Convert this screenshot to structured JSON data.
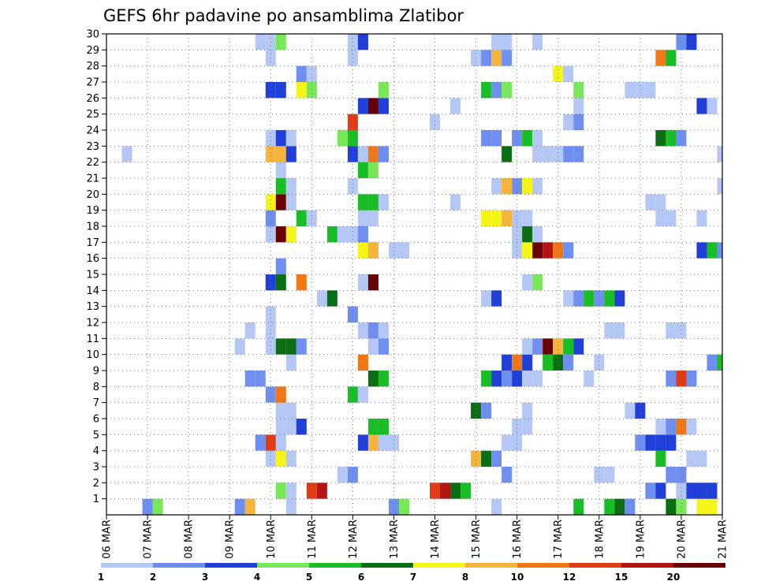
{
  "chart_data": {
    "type": "heatmap",
    "title": "GEFS 6hr padavine po ansamblima Zlatibor",
    "xlabel": "",
    "ylabel": "",
    "grid": true,
    "legend_position": "bottom",
    "x_tick_labels": [
      "06 MAR",
      "07 MAR",
      "08 MAR",
      "09 MAR",
      "10 MAR",
      "11 MAR",
      "12 MAR",
      "13 MAR",
      "14 MAR",
      "15 MAR",
      "16 MAR",
      "17 MAR",
      "18 MAR",
      "19 MAR",
      "20 MAR",
      "21 MAR"
    ],
    "x_unit": "6-hour step from 06 MAR 00z (60 steps, 06 MAR to 21 MAR)",
    "y_tick_labels": [
      "1",
      "2",
      "3",
      "4",
      "5",
      "6",
      "7",
      "8",
      "9",
      "10",
      "11",
      "12",
      "13",
      "14",
      "15",
      "16",
      "17",
      "18",
      "19",
      "20",
      "21",
      "22",
      "23",
      "24",
      "25",
      "26",
      "27",
      "28",
      "29",
      "30"
    ],
    "y_range": [
      0,
      30
    ],
    "color_scale": {
      "labels": [
        "1",
        "2",
        "3",
        "4",
        "5",
        "6",
        "7",
        "8",
        "10",
        "12",
        "15",
        "20"
      ],
      "colors": [
        "#b4c7f5",
        "#6e8ef0",
        "#1f3fd8",
        "#78e85a",
        "#19bd26",
        "#0b6e14",
        "#f5f51a",
        "#f5b43c",
        "#f07814",
        "#e03c14",
        "#b41414",
        "#6b0000"
      ]
    },
    "cells": [
      [
        0,
        4,
        1
      ],
      [
        0,
        5,
        3
      ],
      [
        0,
        13,
        1
      ],
      [
        0,
        14,
        7
      ],
      [
        0,
        18,
        0
      ],
      [
        0,
        28,
        1
      ],
      [
        0,
        29,
        3
      ],
      [
        0,
        38,
        0
      ],
      [
        0,
        46,
        4
      ],
      [
        0,
        49,
        4
      ],
      [
        0,
        50,
        5
      ],
      [
        0,
        51,
        1
      ],
      [
        0,
        55,
        5
      ],
      [
        0,
        56,
        3
      ],
      [
        0,
        58,
        6
      ],
      [
        0,
        59,
        6
      ],
      [
        1,
        17,
        3
      ],
      [
        1,
        18,
        0
      ],
      [
        1,
        20,
        9
      ],
      [
        1,
        21,
        10
      ],
      [
        1,
        32,
        9
      ],
      [
        1,
        33,
        10
      ],
      [
        1,
        34,
        5
      ],
      [
        1,
        35,
        4
      ],
      [
        1,
        53,
        1
      ],
      [
        1,
        54,
        2
      ],
      [
        1,
        56,
        0
      ],
      [
        1,
        57,
        2
      ],
      [
        1,
        58,
        2
      ],
      [
        1,
        59,
        2
      ],
      [
        2,
        23,
        0
      ],
      [
        2,
        24,
        1
      ],
      [
        2,
        39,
        1
      ],
      [
        2,
        48,
        0
      ],
      [
        2,
        49,
        0
      ],
      [
        2,
        55,
        1
      ],
      [
        2,
        56,
        1
      ],
      [
        3,
        16,
        0
      ],
      [
        3,
        17,
        6
      ],
      [
        3,
        18,
        0
      ],
      [
        3,
        36,
        7
      ],
      [
        3,
        37,
        5
      ],
      [
        3,
        38,
        1
      ],
      [
        3,
        54,
        4
      ],
      [
        3,
        57,
        0
      ],
      [
        3,
        58,
        0
      ],
      [
        4,
        15,
        1
      ],
      [
        4,
        16,
        9
      ],
      [
        4,
        17,
        0
      ],
      [
        4,
        25,
        2
      ],
      [
        4,
        26,
        7
      ],
      [
        4,
        27,
        0
      ],
      [
        4,
        28,
        0
      ],
      [
        4,
        39,
        0
      ],
      [
        4,
        40,
        0
      ],
      [
        4,
        52,
        1
      ],
      [
        4,
        53,
        2
      ],
      [
        4,
        54,
        2
      ],
      [
        4,
        55,
        2
      ],
      [
        5,
        17,
        0
      ],
      [
        5,
        18,
        0
      ],
      [
        5,
        19,
        2
      ],
      [
        5,
        26,
        4
      ],
      [
        5,
        27,
        4
      ],
      [
        5,
        40,
        0
      ],
      [
        5,
        41,
        0
      ],
      [
        5,
        54,
        0
      ],
      [
        5,
        55,
        1
      ],
      [
        5,
        56,
        8
      ],
      [
        5,
        57,
        0
      ],
      [
        6,
        17,
        0
      ],
      [
        6,
        18,
        0
      ],
      [
        6,
        36,
        5
      ],
      [
        6,
        37,
        1
      ],
      [
        6,
        41,
        0
      ],
      [
        6,
        51,
        0
      ],
      [
        6,
        52,
        2
      ],
      [
        7,
        16,
        1
      ],
      [
        7,
        17,
        8
      ],
      [
        7,
        24,
        4
      ],
      [
        7,
        25,
        0
      ],
      [
        8,
        14,
        1
      ],
      [
        8,
        15,
        1
      ],
      [
        8,
        26,
        5
      ],
      [
        8,
        27,
        4
      ],
      [
        8,
        37,
        4
      ],
      [
        8,
        38,
        2
      ],
      [
        8,
        39,
        1
      ],
      [
        8,
        40,
        2
      ],
      [
        8,
        41,
        0
      ],
      [
        8,
        42,
        0
      ],
      [
        8,
        47,
        0
      ],
      [
        8,
        55,
        1
      ],
      [
        8,
        56,
        9
      ],
      [
        8,
        57,
        1
      ],
      [
        9,
        18,
        0
      ],
      [
        9,
        25,
        8
      ],
      [
        9,
        39,
        2
      ],
      [
        9,
        40,
        8
      ],
      [
        9,
        41,
        2
      ],
      [
        9,
        43,
        4
      ],
      [
        9,
        44,
        5
      ],
      [
        9,
        45,
        1
      ],
      [
        9,
        48,
        0
      ],
      [
        9,
        59,
        1
      ],
      [
        9,
        60,
        4
      ],
      [
        10,
        13,
        0
      ],
      [
        10,
        16,
        0
      ],
      [
        10,
        17,
        5
      ],
      [
        10,
        18,
        5
      ],
      [
        10,
        19,
        1
      ],
      [
        10,
        26,
        0
      ],
      [
        10,
        27,
        1
      ],
      [
        10,
        41,
        0
      ],
      [
        10,
        42,
        1
      ],
      [
        10,
        43,
        11
      ],
      [
        10,
        44,
        7
      ],
      [
        10,
        45,
        4
      ],
      [
        10,
        46,
        2
      ],
      [
        11,
        14,
        0
      ],
      [
        11,
        16,
        0
      ],
      [
        11,
        25,
        0
      ],
      [
        11,
        26,
        1
      ],
      [
        11,
        27,
        0
      ],
      [
        11,
        49,
        0
      ],
      [
        11,
        50,
        0
      ],
      [
        11,
        55,
        0
      ],
      [
        11,
        56,
        0
      ],
      [
        12,
        16,
        0
      ],
      [
        12,
        24,
        1
      ],
      [
        13,
        21,
        0
      ],
      [
        13,
        22,
        5
      ],
      [
        13,
        37,
        0
      ],
      [
        13,
        38,
        2
      ],
      [
        13,
        45,
        0
      ],
      [
        13,
        46,
        1
      ],
      [
        13,
        47,
        4
      ],
      [
        13,
        48,
        1
      ],
      [
        13,
        49,
        4
      ],
      [
        13,
        50,
        2
      ],
      [
        14,
        16,
        2
      ],
      [
        14,
        17,
        5
      ],
      [
        14,
        19,
        8
      ],
      [
        14,
        25,
        0
      ],
      [
        14,
        26,
        11
      ],
      [
        14,
        41,
        0
      ],
      [
        14,
        42,
        3
      ],
      [
        15,
        17,
        1
      ],
      [
        16,
        25,
        6
      ],
      [
        16,
        26,
        7
      ],
      [
        16,
        28,
        0
      ],
      [
        16,
        29,
        0
      ],
      [
        16,
        40,
        0
      ],
      [
        16,
        41,
        6
      ],
      [
        16,
        42,
        11
      ],
      [
        16,
        43,
        10
      ],
      [
        16,
        44,
        8
      ],
      [
        16,
        45,
        1
      ],
      [
        16,
        58,
        2
      ],
      [
        16,
        59,
        4
      ],
      [
        16,
        60,
        1
      ],
      [
        17,
        16,
        0
      ],
      [
        17,
        17,
        11
      ],
      [
        17,
        18,
        6
      ],
      [
        17,
        22,
        4
      ],
      [
        17,
        23,
        0
      ],
      [
        17,
        24,
        0
      ],
      [
        17,
        25,
        1
      ],
      [
        17,
        40,
        0
      ],
      [
        17,
        41,
        5
      ],
      [
        17,
        42,
        0
      ],
      [
        18,
        16,
        1
      ],
      [
        18,
        19,
        4
      ],
      [
        18,
        20,
        0
      ],
      [
        18,
        25,
        0
      ],
      [
        18,
        26,
        0
      ],
      [
        18,
        37,
        6
      ],
      [
        18,
        38,
        6
      ],
      [
        18,
        39,
        7
      ],
      [
        18,
        40,
        0
      ],
      [
        18,
        41,
        0
      ],
      [
        18,
        54,
        0
      ],
      [
        18,
        55,
        0
      ],
      [
        18,
        58,
        0
      ],
      [
        19,
        16,
        6
      ],
      [
        19,
        17,
        11
      ],
      [
        19,
        18,
        0
      ],
      [
        19,
        25,
        4
      ],
      [
        19,
        26,
        4
      ],
      [
        19,
        27,
        0
      ],
      [
        19,
        34,
        0
      ],
      [
        19,
        53,
        0
      ],
      [
        19,
        54,
        0
      ],
      [
        20,
        17,
        4
      ],
      [
        20,
        18,
        0
      ],
      [
        20,
        24,
        0
      ],
      [
        20,
        38,
        0
      ],
      [
        20,
        39,
        7
      ],
      [
        20,
        40,
        1
      ],
      [
        20,
        41,
        6
      ],
      [
        20,
        42,
        0
      ],
      [
        20,
        60,
        0
      ],
      [
        21,
        17,
        0
      ],
      [
        21,
        25,
        4
      ],
      [
        21,
        26,
        3
      ],
      [
        22,
        2,
        0
      ],
      [
        22,
        16,
        7
      ],
      [
        22,
        17,
        7
      ],
      [
        22,
        18,
        2
      ],
      [
        22,
        24,
        2
      ],
      [
        22,
        25,
        0
      ],
      [
        22,
        26,
        8
      ],
      [
        22,
        27,
        1
      ],
      [
        22,
        39,
        5
      ],
      [
        22,
        42,
        0
      ],
      [
        22,
        43,
        0
      ],
      [
        22,
        44,
        0
      ],
      [
        22,
        45,
        1
      ],
      [
        22,
        46,
        1
      ],
      [
        22,
        60,
        0
      ],
      [
        23,
        16,
        0
      ],
      [
        23,
        17,
        2
      ],
      [
        23,
        18,
        0
      ],
      [
        23,
        23,
        3
      ],
      [
        23,
        24,
        4
      ],
      [
        23,
        37,
        1
      ],
      [
        23,
        38,
        1
      ],
      [
        23,
        40,
        1
      ],
      [
        23,
        41,
        4
      ],
      [
        23,
        42,
        0
      ],
      [
        23,
        54,
        5
      ],
      [
        23,
        55,
        4
      ],
      [
        23,
        56,
        1
      ],
      [
        24,
        24,
        9
      ],
      [
        24,
        32,
        0
      ],
      [
        24,
        45,
        0
      ],
      [
        24,
        46,
        1
      ],
      [
        25,
        25,
        2
      ],
      [
        25,
        26,
        11
      ],
      [
        25,
        27,
        2
      ],
      [
        25,
        34,
        0
      ],
      [
        25,
        46,
        0
      ],
      [
        25,
        58,
        2
      ],
      [
        25,
        59,
        0
      ],
      [
        26,
        16,
        2
      ],
      [
        26,
        17,
        2
      ],
      [
        26,
        19,
        6
      ],
      [
        26,
        20,
        3
      ],
      [
        26,
        27,
        3
      ],
      [
        26,
        37,
        4
      ],
      [
        26,
        38,
        1
      ],
      [
        26,
        39,
        3
      ],
      [
        26,
        46,
        3
      ],
      [
        26,
        51,
        0
      ],
      [
        26,
        52,
        0
      ],
      [
        26,
        53,
        0
      ],
      [
        27,
        19,
        1
      ],
      [
        27,
        20,
        0
      ],
      [
        27,
        44,
        6
      ],
      [
        27,
        45,
        0
      ],
      [
        28,
        16,
        0
      ],
      [
        28,
        24,
        0
      ],
      [
        28,
        36,
        0
      ],
      [
        28,
        37,
        1
      ],
      [
        28,
        38,
        7
      ],
      [
        28,
        39,
        1
      ],
      [
        28,
        54,
        8
      ],
      [
        28,
        55,
        4
      ],
      [
        29,
        15,
        0
      ],
      [
        29,
        16,
        0
      ],
      [
        29,
        17,
        3
      ],
      [
        29,
        24,
        0
      ],
      [
        29,
        25,
        2
      ],
      [
        29,
        38,
        0
      ],
      [
        29,
        39,
        0
      ],
      [
        29,
        42,
        0
      ],
      [
        29,
        56,
        1
      ],
      [
        29,
        57,
        2
      ]
    ]
  }
}
